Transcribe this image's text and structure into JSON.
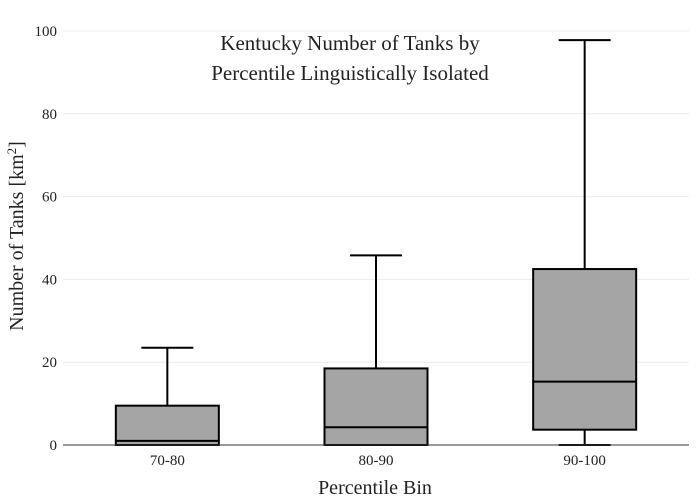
{
  "chart_data": {
    "type": "box",
    "title_lines": [
      "Kentucky Number of Tanks by",
      "Percentile Linguistically Isolated"
    ],
    "xlabel": "Percentile Bin",
    "ylabel": "Number of Tanks  [km",
    "ylabel_sup": "2",
    "ylabel_end": "]",
    "ylim": [
      0,
      100
    ],
    "yticks": [
      0,
      20,
      40,
      60,
      80,
      100
    ],
    "grid": true,
    "categories": [
      "70-80",
      "80-90",
      "90-100"
    ],
    "boxes": [
      {
        "category": "70-80",
        "min": 0,
        "q1": 0,
        "median": 1,
        "q3": 9.5,
        "max": 23.5
      },
      {
        "category": "80-90",
        "min": 0,
        "q1": 0,
        "median": 4.3,
        "q3": 18.5,
        "max": 45.8
      },
      {
        "category": "90-100",
        "min": 0,
        "q1": 3.7,
        "median": 15.3,
        "q3": 42.5,
        "max": 97.8
      }
    ],
    "box_color": "#a5a5a5",
    "line_color": "#000000"
  }
}
